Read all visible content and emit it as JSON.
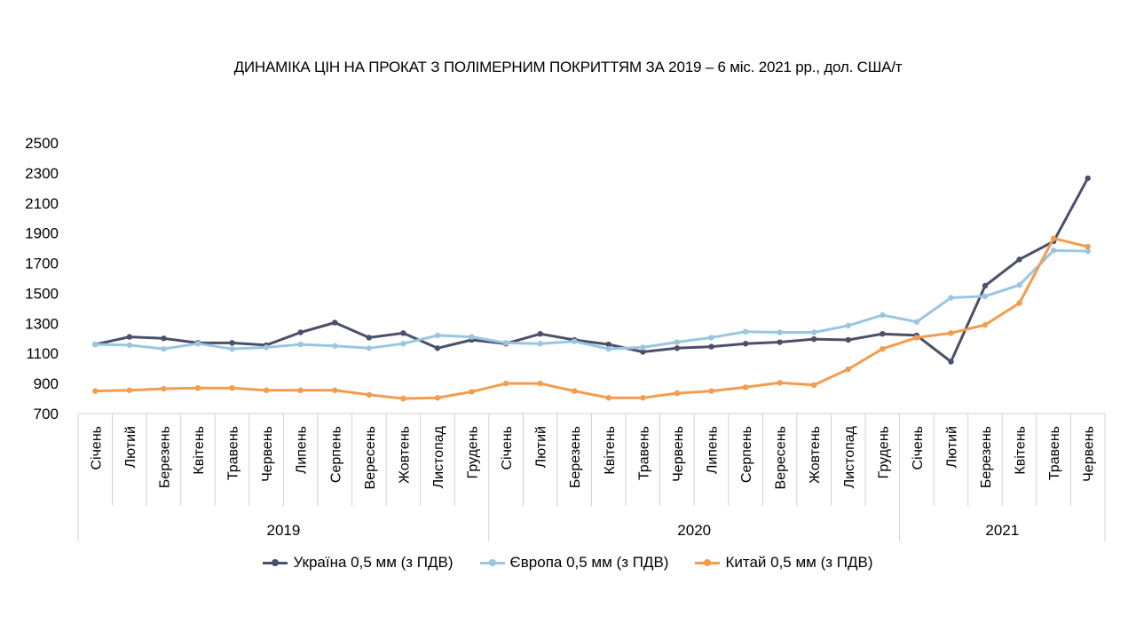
{
  "chart_data": {
    "type": "line",
    "title": "ДИНАМІКА ЦІН НА ПРОКАТ З ПОЛІМЕРНИМ ПОКРИТТЯМ ЗА 2019 – 6 міс. 2021 рр., дол. США/т",
    "y_ticks": [
      "2500",
      "2300",
      "2100",
      "1900",
      "1700",
      "1500",
      "1300",
      "1100",
      "900",
      "700"
    ],
    "ylim": [
      700,
      2500
    ],
    "categories": [
      "Січень",
      "Лютий",
      "Березень",
      "Квітень",
      "Травень",
      "Червень",
      "Липень",
      "Серпень",
      "Вересень",
      "Жовтень",
      "Листопад",
      "Грудень",
      "Січень",
      "Лютий",
      "Березень",
      "Квітень",
      "Травень",
      "Червень",
      "Липень",
      "Серпень",
      "Вересень",
      "Жовтень",
      "Листопад",
      "Грудень",
      "Січень",
      "Лютий",
      "Березень",
      "Квітень",
      "Травень",
      "Червень"
    ],
    "years": [
      {
        "label": "2019",
        "count": 12
      },
      {
        "label": "2020",
        "count": 12
      },
      {
        "label": "2021",
        "count": 6
      }
    ],
    "grid": false,
    "legend_position": "bottom",
    "series": [
      {
        "name": "Україна 0,5 мм (з ПДВ)",
        "color": "#4a5068",
        "values": [
          1160,
          1210,
          1200,
          1170,
          1170,
          1155,
          1240,
          1305,
          1205,
          1235,
          1135,
          1190,
          1165,
          1230,
          1190,
          1160,
          1110,
          1135,
          1145,
          1165,
          1175,
          1195,
          1190,
          1230,
          1220,
          1045,
          1550,
          1725,
          1845,
          2265
        ]
      },
      {
        "name": "Європа 0,5 мм (з ПДВ)",
        "color": "#9ac6e0",
        "values": [
          1160,
          1155,
          1130,
          1165,
          1130,
          1140,
          1160,
          1150,
          1135,
          1165,
          1220,
          1210,
          1170,
          1165,
          1180,
          1130,
          1140,
          1175,
          1205,
          1245,
          1240,
          1240,
          1285,
          1355,
          1310,
          1470,
          1480,
          1555,
          1785,
          1780
        ]
      },
      {
        "name": "Китай 0,5 мм (з ПДВ)",
        "color": "#f39c4e",
        "values": [
          850,
          855,
          865,
          870,
          870,
          855,
          855,
          855,
          825,
          800,
          805,
          845,
          900,
          900,
          850,
          805,
          805,
          835,
          850,
          875,
          905,
          890,
          995,
          1130,
          1205,
          1235,
          1290,
          1435,
          1865,
          1810
        ]
      }
    ]
  }
}
